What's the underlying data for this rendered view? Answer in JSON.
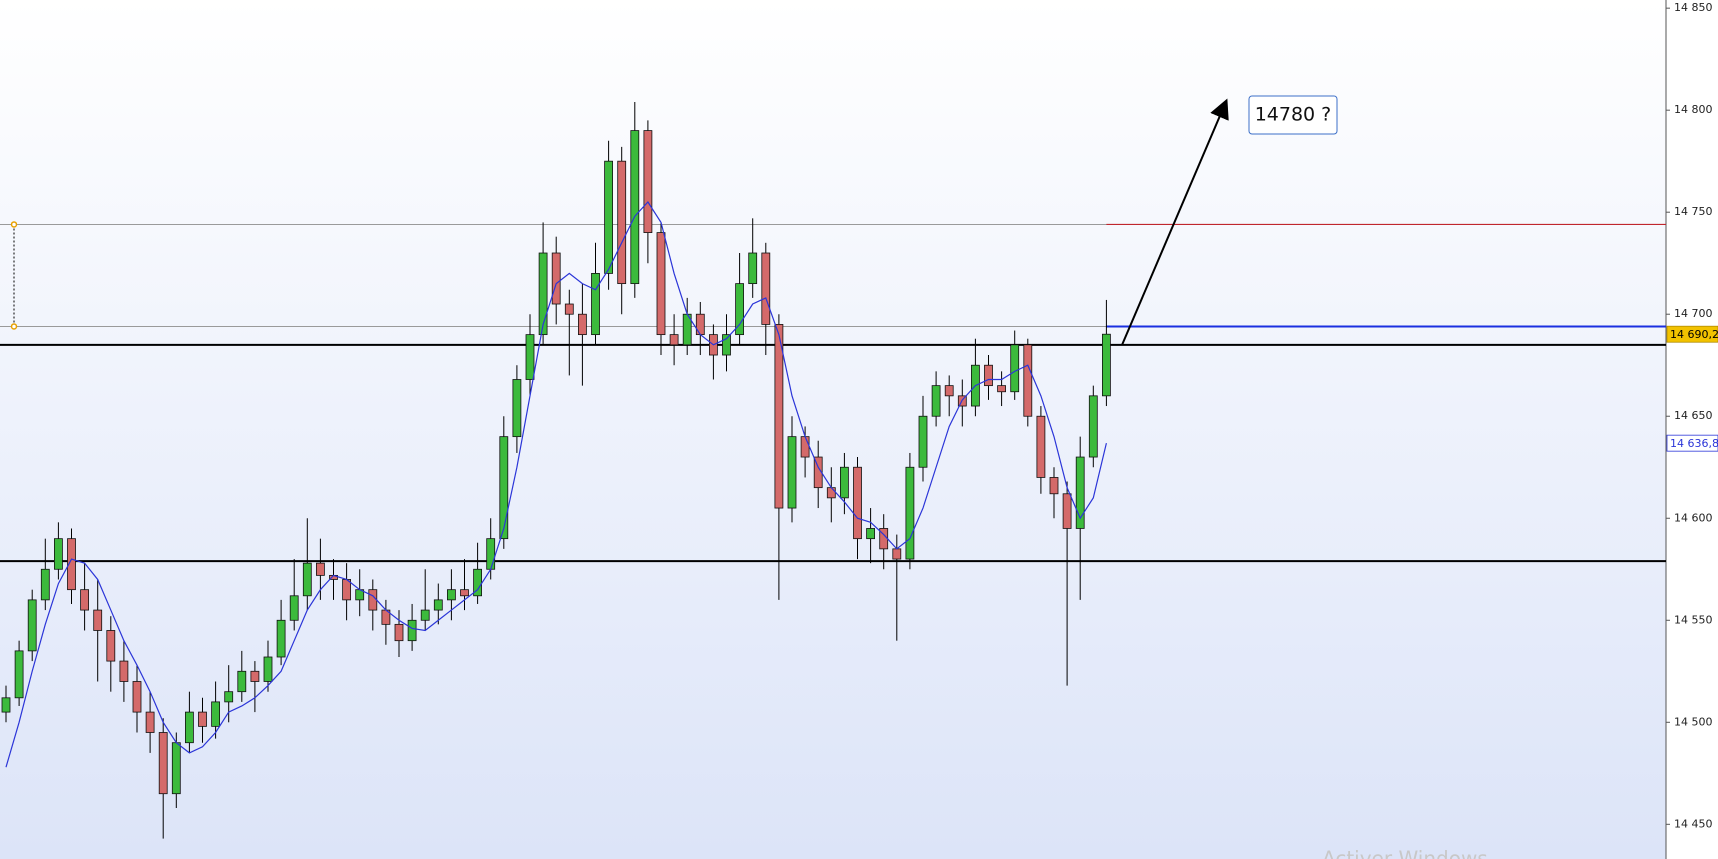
{
  "chart_data": {
    "type": "candlestick",
    "ylim": [
      14433,
      14854
    ],
    "yticks": [
      {
        "value": 14450,
        "label": "14 450"
      },
      {
        "value": 14500,
        "label": "14 500"
      },
      {
        "value": 14550,
        "label": "14 550"
      },
      {
        "value": 14600,
        "label": "14 600"
      },
      {
        "value": 14650,
        "label": "14 650"
      },
      {
        "value": 14700,
        "label": "14 700"
      },
      {
        "value": 14750,
        "label": "14 750"
      },
      {
        "value": 14800,
        "label": "14 800"
      },
      {
        "value": 14850,
        "label": "14 850"
      }
    ],
    "up_color": "#3cba3c",
    "down_color": "#d46a6a",
    "ohlc": [
      [
        14505,
        14518,
        14500,
        14512
      ],
      [
        14512,
        14540,
        14508,
        14535
      ],
      [
        14535,
        14565,
        14530,
        14560
      ],
      [
        14560,
        14590,
        14555,
        14575
      ],
      [
        14575,
        14598,
        14570,
        14590
      ],
      [
        14590,
        14595,
        14558,
        14565
      ],
      [
        14565,
        14578,
        14545,
        14555
      ],
      [
        14555,
        14570,
        14520,
        14545
      ],
      [
        14545,
        14552,
        14515,
        14530
      ],
      [
        14530,
        14540,
        14510,
        14520
      ],
      [
        14520,
        14528,
        14495,
        14505
      ],
      [
        14505,
        14515,
        14485,
        14495
      ],
      [
        14495,
        14502,
        14443,
        14465
      ],
      [
        14465,
        14495,
        14458,
        14490
      ],
      [
        14490,
        14515,
        14485,
        14505
      ],
      [
        14505,
        14512,
        14490,
        14498
      ],
      [
        14498,
        14520,
        14492,
        14510
      ],
      [
        14510,
        14528,
        14500,
        14515
      ],
      [
        14515,
        14535,
        14510,
        14525
      ],
      [
        14525,
        14530,
        14505,
        14520
      ],
      [
        14520,
        14540,
        14515,
        14532
      ],
      [
        14532,
        14560,
        14528,
        14550
      ],
      [
        14550,
        14580,
        14545,
        14562
      ],
      [
        14562,
        14600,
        14555,
        14578
      ],
      [
        14578,
        14590,
        14560,
        14572
      ],
      [
        14572,
        14580,
        14560,
        14570
      ],
      [
        14570,
        14578,
        14550,
        14560
      ],
      [
        14560,
        14575,
        14552,
        14565
      ],
      [
        14565,
        14570,
        14545,
        14555
      ],
      [
        14555,
        14560,
        14538,
        14548
      ],
      [
        14548,
        14555,
        14532,
        14540
      ],
      [
        14540,
        14558,
        14535,
        14550
      ],
      [
        14550,
        14575,
        14545,
        14555
      ],
      [
        14555,
        14568,
        14548,
        14560
      ],
      [
        14560,
        14575,
        14550,
        14565
      ],
      [
        14565,
        14580,
        14555,
        14562
      ],
      [
        14562,
        14588,
        14558,
        14575
      ],
      [
        14575,
        14600,
        14570,
        14590
      ],
      [
        14590,
        14650,
        14585,
        14640
      ],
      [
        14640,
        14675,
        14632,
        14668
      ],
      [
        14668,
        14700,
        14660,
        14690
      ],
      [
        14690,
        14745,
        14685,
        14730
      ],
      [
        14730,
        14738,
        14695,
        14705
      ],
      [
        14705,
        14712,
        14670,
        14700
      ],
      [
        14700,
        14715,
        14665,
        14690
      ],
      [
        14690,
        14735,
        14685,
        14720
      ],
      [
        14720,
        14785,
        14712,
        14775
      ],
      [
        14775,
        14782,
        14700,
        14715
      ],
      [
        14715,
        14804,
        14708,
        14790
      ],
      [
        14790,
        14795,
        14725,
        14740
      ],
      [
        14740,
        14745,
        14680,
        14690
      ],
      [
        14690,
        14700,
        14675,
        14685
      ],
      [
        14685,
        14708,
        14680,
        14700
      ],
      [
        14700,
        14706,
        14680,
        14690
      ],
      [
        14690,
        14695,
        14668,
        14680
      ],
      [
        14680,
        14700,
        14672,
        14690
      ],
      [
        14690,
        14730,
        14685,
        14715
      ],
      [
        14715,
        14747,
        14708,
        14730
      ],
      [
        14730,
        14735,
        14680,
        14695
      ],
      [
        14695,
        14700,
        14560,
        14605
      ],
      [
        14605,
        14650,
        14598,
        14640
      ],
      [
        14640,
        14645,
        14620,
        14630
      ],
      [
        14630,
        14638,
        14605,
        14615
      ],
      [
        14615,
        14625,
        14598,
        14610
      ],
      [
        14610,
        14632,
        14602,
        14625
      ],
      [
        14625,
        14630,
        14580,
        14590
      ],
      [
        14590,
        14605,
        14578,
        14595
      ],
      [
        14595,
        14602,
        14575,
        14585
      ],
      [
        14585,
        14592,
        14540,
        14580
      ],
      [
        14580,
        14632,
        14575,
        14625
      ],
      [
        14625,
        14660,
        14618,
        14650
      ],
      [
        14650,
        14672,
        14645,
        14665
      ],
      [
        14665,
        14670,
        14650,
        14660
      ],
      [
        14660,
        14668,
        14645,
        14655
      ],
      [
        14655,
        14688,
        14650,
        14675
      ],
      [
        14675,
        14680,
        14658,
        14665
      ],
      [
        14665,
        14672,
        14655,
        14662
      ],
      [
        14662,
        14692,
        14658,
        14685
      ],
      [
        14685,
        14688,
        14645,
        14650
      ],
      [
        14650,
        14655,
        14612,
        14620
      ],
      [
        14620,
        14625,
        14600,
        14612
      ],
      [
        14612,
        14618,
        14518,
        14595
      ],
      [
        14595,
        14640,
        14560,
        14630
      ],
      [
        14630,
        14665,
        14625,
        14660
      ],
      [
        14660,
        14707,
        14655,
        14690.2
      ]
    ],
    "ma": {
      "color": "#2b35d8",
      "values": [
        14478,
        14500,
        14525,
        14548,
        14568,
        14580,
        14578,
        14570,
        14555,
        14540,
        14528,
        14515,
        14500,
        14490,
        14485,
        14488,
        14495,
        14505,
        14508,
        14512,
        14518,
        14525,
        14540,
        14555,
        14565,
        14572,
        14570,
        14565,
        14562,
        14555,
        14550,
        14546,
        14545,
        14550,
        14555,
        14560,
        14565,
        14575,
        14595,
        14625,
        14660,
        14695,
        14715,
        14720,
        14715,
        14712,
        14722,
        14735,
        14748,
        14755,
        14745,
        14720,
        14700,
        14690,
        14685,
        14688,
        14695,
        14705,
        14708,
        14690,
        14660,
        14640,
        14625,
        14615,
        14608,
        14600,
        14598,
        14592,
        14585,
        14590,
        14605,
        14625,
        14645,
        14658,
        14665,
        14668,
        14668,
        14672,
        14675,
        14660,
        14640,
        14615,
        14600,
        14610,
        14636.8
      ]
    },
    "levels": [
      {
        "value": 14744,
        "color": "#9a9a9a",
        "extent": "full"
      },
      {
        "value": 14694,
        "color": "#9a9a9a",
        "extent": "full"
      },
      {
        "value": 14685,
        "color": "#000000",
        "extent": "full"
      },
      {
        "value": 14579,
        "color": "#000000",
        "extent": "full"
      },
      {
        "value": 14744,
        "color": "#c0262d",
        "extent": "right"
      },
      {
        "value": 14694,
        "color": "#1a2fe0",
        "extent": "right"
      }
    ],
    "price_tags": [
      {
        "value": 14690.2,
        "label": "14 690,2",
        "color": "#f2c200",
        "text_color": "#000000"
      },
      {
        "value": 14636.8,
        "label": "14 636,8",
        "color": "#ffffff",
        "text_color": "#2b35d8"
      }
    ],
    "annotation": "14780 ?",
    "watermark": "Activer Windows"
  }
}
